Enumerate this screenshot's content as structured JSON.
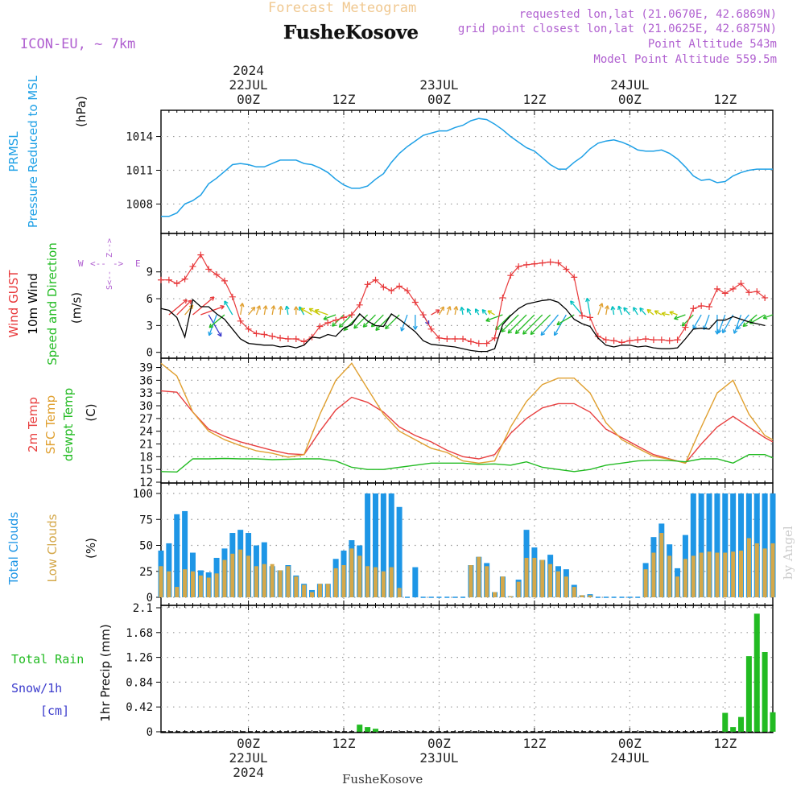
{
  "header": {
    "model": "ICON-EU, ~ 7km",
    "product": "Forecast Meteogram",
    "location": "FusheKosove",
    "requested": "requested lon,lat (21.0670E, 42.6869N)",
    "closest": "grid point closest lon,lat (21.0625E, 42.6875N)",
    "point_alt": "Point Altitude 543m",
    "model_alt": "Model Point Altitude 559.5m",
    "footer_location": "FusheKosove",
    "watermark": "by Angel"
  },
  "time_axis": {
    "top_labels": [
      {
        "hour": 0,
        "lines": [
          "2024",
          "22JUL",
          "00Z"
        ]
      },
      {
        "hour": 12,
        "lines": [
          "12Z"
        ]
      },
      {
        "hour": 24,
        "lines": [
          "23JUL",
          "00Z"
        ]
      },
      {
        "hour": 36,
        "lines": [
          "12Z"
        ]
      },
      {
        "hour": 48,
        "lines": [
          "24JUL",
          "00Z"
        ]
      },
      {
        "hour": 60,
        "lines": [
          "12Z"
        ]
      }
    ],
    "bottom_labels": [
      {
        "hour": 0,
        "lines": [
          "00Z",
          "22JUL",
          "2024"
        ]
      },
      {
        "hour": 12,
        "lines": [
          "12Z"
        ]
      },
      {
        "hour": 24,
        "lines": [
          "00Z",
          "23JUL"
        ]
      },
      {
        "hour": 36,
        "lines": [
          "12Z"
        ]
      },
      {
        "hour": 48,
        "lines": [
          "00Z",
          "24JUL"
        ]
      },
      {
        "hour": 60,
        "lines": [
          "12Z"
        ]
      }
    ],
    "range_hours": [
      -11,
      66
    ]
  },
  "colors": {
    "pressure": "#1ea0e6",
    "gust": "#e8383a",
    "wind": "#000000",
    "wind_dir": "#22bb22",
    "temp2m": "#e84040",
    "sfc_temp": "#e0a030",
    "dewpt": "#22bb22",
    "total_clouds": "#1e96e6",
    "low_clouds": "#d4a84a",
    "rain": "#22bb22",
    "snow": "#3a3acc",
    "label_purple": "#b060d0"
  },
  "chart_data": [
    {
      "id": "pressure",
      "type": "line",
      "label_lines": [
        "PRMSL",
        "Pressure Reduced to MSL"
      ],
      "unit": "(hPa)",
      "ylim": [
        1006.1,
        1015.9
      ],
      "yticks": [
        1008,
        1011,
        1014
      ],
      "x_hours": [
        -11,
        -10,
        -9,
        -8,
        -7,
        -6,
        -5,
        -4,
        -3,
        -2,
        -1,
        0,
        1,
        2,
        3,
        4,
        5,
        6,
        7,
        8,
        9,
        10,
        11,
        12,
        13,
        14,
        15,
        16,
        17,
        18,
        19,
        20,
        21,
        22,
        23,
        24,
        25,
        26,
        27,
        28,
        29,
        30,
        31,
        32,
        33,
        34,
        35,
        36,
        37,
        38,
        39,
        40,
        41,
        42,
        43,
        44,
        45,
        46,
        47,
        48,
        49,
        50,
        51,
        52,
        53,
        54,
        55,
        56,
        57,
        58,
        59,
        60,
        61,
        62,
        63,
        64,
        65,
        66
      ],
      "series": [
        {
          "name": "PRMSL",
          "values": [
            1006.9,
            1006.9,
            1007.2,
            1008,
            1008.3,
            1008.8,
            1009.8,
            1010.3,
            1010.9,
            1011.5,
            1011.6,
            1011.5,
            1011.3,
            1011.3,
            1011.6,
            1011.9,
            1011.9,
            1011.9,
            1011.6,
            1011.5,
            1011.2,
            1010.8,
            1010.2,
            1009.7,
            1009.4,
            1009.4,
            1009.6,
            1010.2,
            1010.7,
            1011.7,
            1012.5,
            1013.1,
            1013.6,
            1014.1,
            1014.3,
            1014.5,
            1014.5,
            1014.8,
            1015,
            1015.4,
            1015.6,
            1015.5,
            1015.1,
            1014.6,
            1014,
            1013.5,
            1013,
            1012.7,
            1012.1,
            1011.5,
            1011.1,
            1011.1,
            1011.7,
            1012.2,
            1012.9,
            1013.4,
            1013.6,
            1013.7,
            1013.5,
            1013.2,
            1012.8,
            1012.7,
            1012.7,
            1012.8,
            1012.5,
            1012,
            1011.3,
            1010.5,
            1010.1,
            1010.2,
            1009.9,
            1010,
            1010.5,
            1010.8,
            1011,
            1011.1,
            1011.1,
            1011.1
          ]
        }
      ]
    },
    {
      "id": "wind",
      "type": "line",
      "label_lines": [
        "Wind GUST",
        "10m Wind",
        "Speed and Direction"
      ],
      "unit": "(m/s)",
      "compass": {
        "n": "N",
        "s": "S",
        "w": "W",
        "e": "E"
      },
      "ylim": [
        -0.3,
        12.4
      ],
      "yticks": [
        0,
        3,
        6,
        9
      ],
      "x_hours": [
        -11,
        -10,
        -9,
        -8,
        -7,
        -6,
        -5,
        -4,
        -3,
        -2,
        -1,
        0,
        1,
        2,
        3,
        4,
        5,
        6,
        7,
        8,
        9,
        10,
        11,
        12,
        13,
        14,
        15,
        16,
        17,
        18,
        19,
        20,
        21,
        22,
        23,
        24,
        25,
        26,
        27,
        28,
        29,
        30,
        31,
        32,
        33,
        34,
        35,
        36,
        37,
        38,
        39,
        40,
        41,
        42,
        43,
        44,
        45,
        46,
        47,
        48,
        49,
        50,
        51,
        52,
        53,
        54,
        55,
        56,
        57,
        58,
        59,
        60,
        61,
        62,
        63,
        64,
        65,
        66
      ],
      "series": [
        {
          "name": "Wind GUST",
          "values": [
            8.1,
            8.1,
            7.7,
            8.2,
            9.6,
            10.9,
            9.3,
            8.7,
            8,
            6.2,
            3.5,
            2.6,
            2.1,
            2,
            1.8,
            1.6,
            1.5,
            1.5,
            1.2,
            1.7,
            2.9,
            3.3,
            3.6,
            3.9,
            4.2,
            5.3,
            7.6,
            8.1,
            7.3,
            6.9,
            7.4,
            6.9,
            5.6,
            4.2,
            2.6,
            1.6,
            1.5,
            1.5,
            1.5,
            1.2,
            1.0,
            1.0,
            1.6,
            6.1,
            8.6,
            9.6,
            9.8,
            9.9,
            10.0,
            10.1,
            10.0,
            9.3,
            8.4,
            4.1,
            3.9,
            1.8,
            1.4,
            1.3,
            1.1,
            1.3,
            1.4,
            1.5,
            1.4,
            1.4,
            1.3,
            1.4,
            2.8,
            4.9,
            5.2,
            5.1,
            7.1,
            6.6,
            7.1,
            7.7,
            6.7,
            6.8,
            6.1
          ]
        },
        {
          "name": "10m Wind",
          "values": [
            4.9,
            4.7,
            3.9,
            1.7,
            5.9,
            5.1,
            5.1,
            4.3,
            3.7,
            2.6,
            1.5,
            1.0,
            0.9,
            0.8,
            0.8,
            0.6,
            0.7,
            0.5,
            0.8,
            1.7,
            1.6,
            2,
            1.8,
            2.7,
            3.1,
            4.3,
            3.5,
            3,
            2.9,
            4.3,
            3.7,
            3,
            2.3,
            1.3,
            0.9,
            0.8,
            0.7,
            0.6,
            0.4,
            0.2,
            0.1,
            0.1,
            0.4,
            3.1,
            4.1,
            4.9,
            5.4,
            5.6,
            5.8,
            5.9,
            5.6,
            4.8,
            3.7,
            3.2,
            2.9,
            1.6,
            0.8,
            0.6,
            0.8,
            0.8,
            0.6,
            0.7,
            0.5,
            0.4,
            0.4,
            0.5,
            1.5,
            2.6,
            2.7,
            2.6,
            3.6,
            3.6,
            4.0,
            3.7,
            3.4,
            3.2,
            3.0
          ]
        }
      ],
      "barb_hours": [
        -10,
        -9,
        -8,
        -7,
        -6,
        -5,
        -4,
        -3,
        -2,
        -1,
        0,
        1,
        2,
        3,
        4,
        5,
        6,
        7,
        8,
        9,
        10,
        11,
        12,
        13,
        14,
        15,
        16,
        17,
        18,
        19,
        20,
        21,
        22,
        23,
        24,
        25,
        26,
        27,
        28,
        29,
        30,
        31,
        32,
        33,
        34,
        35,
        36,
        37,
        38,
        39,
        40,
        41,
        42,
        43,
        44,
        45,
        46,
        47,
        48,
        49,
        50,
        51,
        52,
        53,
        54,
        55,
        56,
        57,
        58,
        59,
        60,
        61,
        62,
        63,
        64,
        65,
        66
      ],
      "barb_dirs_deg": [
        50,
        45,
        40,
        50,
        70,
        150,
        200,
        230,
        330,
        10,
        40,
        20,
        10,
        10,
        5,
        350,
        0,
        330,
        300,
        300,
        290,
        250,
        225,
        225,
        225,
        225,
        225,
        225,
        225,
        225,
        200,
        180,
        150,
        60,
        30,
        20,
        10,
        350,
        330,
        330,
        320,
        300,
        250,
        225,
        225,
        225,
        225,
        225,
        225,
        220,
        210,
        240,
        320,
        350,
        20,
        10,
        350,
        340,
        320,
        330,
        320,
        310,
        300,
        280,
        290,
        250,
        225,
        210,
        200,
        180,
        200,
        210,
        200,
        220,
        230,
        240,
        250
      ]
    },
    {
      "id": "temperature",
      "type": "line",
      "label_lines": [
        "2m Temp",
        "SFC Temp",
        "dewpt Temp"
      ],
      "unit": "(C)",
      "ylim": [
        12,
        41
      ],
      "yticks": [
        12,
        15,
        18,
        21,
        24,
        27,
        30,
        33,
        36,
        39
      ],
      "x_hours": [
        -11,
        -9,
        -7,
        -5,
        -3,
        -1,
        1,
        3,
        5,
        7,
        9,
        11,
        13,
        15,
        17,
        19,
        21,
        23,
        25,
        27,
        29,
        31,
        33,
        35,
        37,
        39,
        41,
        43,
        45,
        47,
        49,
        51,
        53,
        55,
        57,
        59,
        61,
        63,
        65,
        66
      ],
      "series": [
        {
          "name": "2m Temp",
          "values": [
            33.5,
            33.2,
            28.5,
            24.5,
            22.8,
            21.5,
            20.5,
            19.5,
            18.7,
            18.5,
            24,
            29,
            32,
            30.8,
            28.5,
            25,
            23,
            21.5,
            19.5,
            18,
            17.5,
            18.5,
            23.5,
            27,
            29.5,
            30.5,
            30.5,
            28.5,
            24.5,
            22.5,
            20.5,
            18.5,
            17.5,
            16.5,
            21,
            25,
            27.5,
            25,
            22.5,
            21.5
          ]
        },
        {
          "name": "SFC Temp",
          "values": [
            40,
            37,
            28.5,
            24,
            22,
            20.6,
            19.4,
            18.8,
            17.9,
            18.5,
            28,
            36,
            40,
            34,
            28,
            24,
            22,
            20,
            19,
            17,
            16.5,
            17,
            25,
            31,
            35,
            36.5,
            36.5,
            33,
            26,
            22,
            20,
            18.1,
            17.4,
            16.5,
            25,
            33,
            36,
            28,
            23,
            22
          ]
        },
        {
          "name": "dewpt Temp",
          "values": [
            14.5,
            14.4,
            17.5,
            17.5,
            17.6,
            17.5,
            17.5,
            17.3,
            17.4,
            17.5,
            17.5,
            17,
            15.5,
            15,
            15,
            15.5,
            16,
            16.5,
            16.5,
            16.5,
            16.2,
            16.3,
            16,
            16.8,
            15.5,
            15,
            14.5,
            15,
            16,
            16.5,
            17,
            17.2,
            17.1,
            16.8,
            17.5,
            17.5,
            16.5,
            18.5,
            18.5,
            17.7
          ]
        }
      ]
    },
    {
      "id": "clouds",
      "type": "bar",
      "label_lines": [
        "Total Clouds",
        "Low Clouds"
      ],
      "unit": "(%)",
      "ylim": [
        0,
        100
      ],
      "yticks": [
        0,
        25,
        50,
        75,
        100
      ],
      "x_hours": [
        -11,
        -10,
        -9,
        -8,
        -7,
        -6,
        -5,
        -4,
        -3,
        -2,
        -1,
        0,
        1,
        2,
        3,
        4,
        5,
        6,
        7,
        8,
        9,
        10,
        11,
        12,
        13,
        14,
        15,
        16,
        17,
        18,
        19,
        20,
        21,
        22,
        23,
        24,
        25,
        26,
        27,
        28,
        29,
        30,
        31,
        32,
        33,
        34,
        35,
        36,
        37,
        38,
        39,
        40,
        41,
        42,
        43,
        44,
        45,
        46,
        47,
        48,
        49,
        50,
        51,
        52,
        53,
        54,
        55,
        56,
        57,
        58,
        59,
        60,
        61,
        62,
        63,
        64,
        65,
        66
      ],
      "series": [
        {
          "name": "Total Clouds",
          "values": [
            45,
            52,
            80,
            83,
            43,
            26,
            24,
            38,
            47,
            62,
            65,
            62,
            50,
            53,
            30,
            26,
            31,
            21,
            13,
            7,
            13,
            13,
            37,
            45,
            55,
            50,
            100,
            100,
            100,
            100,
            87,
            0,
            29,
            0,
            0,
            0,
            0,
            0,
            0,
            31,
            39,
            33,
            5,
            20,
            1,
            17,
            65,
            48,
            36,
            41,
            30,
            27,
            12,
            2,
            3,
            0,
            0,
            0,
            0,
            0,
            0,
            33,
            58,
            71,
            51,
            28,
            60,
            100,
            100,
            100,
            100,
            100,
            100,
            100,
            100,
            100,
            100,
            100
          ]
        },
        {
          "name": "Low Clouds",
          "values": [
            30,
            25,
            10,
            27,
            25,
            21,
            19,
            23,
            36,
            42,
            46,
            40,
            30,
            32,
            32,
            26,
            30,
            20,
            12,
            5,
            13,
            13,
            28,
            31,
            47,
            40,
            30,
            29,
            25,
            29,
            9,
            0,
            0,
            0,
            0,
            0,
            0,
            0,
            0,
            31,
            39,
            30,
            5,
            20,
            1,
            15,
            38,
            38,
            36,
            32,
            25,
            20,
            10,
            2,
            2,
            0,
            0,
            0,
            0,
            0,
            0,
            27,
            43,
            62,
            40,
            20,
            37,
            40,
            43,
            44,
            43,
            43,
            44,
            45,
            57,
            52,
            47,
            52
          ]
        }
      ]
    },
    {
      "id": "precip",
      "type": "bar",
      "label_lines": [
        "Total  Rain",
        "Snow/1h",
        "[cm]"
      ],
      "unit": "1hr Precip (mm)",
      "ylim": [
        0,
        2.1
      ],
      "yticks": [
        0,
        0.42,
        0.84,
        1.26,
        1.68,
        2.1
      ],
      "ytick_labels": [
        "0",
        "0.42",
        "0.84",
        "1.26",
        "1.68",
        "2.1"
      ],
      "x_hours": [
        14,
        15,
        16,
        60,
        61,
        62,
        63,
        64,
        65,
        66
      ],
      "series": [
        {
          "name": "Total  Rain",
          "values": [
            0.12,
            0.08,
            0.05,
            0.32,
            0.08,
            0.25,
            1.28,
            2.0,
            1.35,
            0.33
          ]
        }
      ]
    }
  ]
}
